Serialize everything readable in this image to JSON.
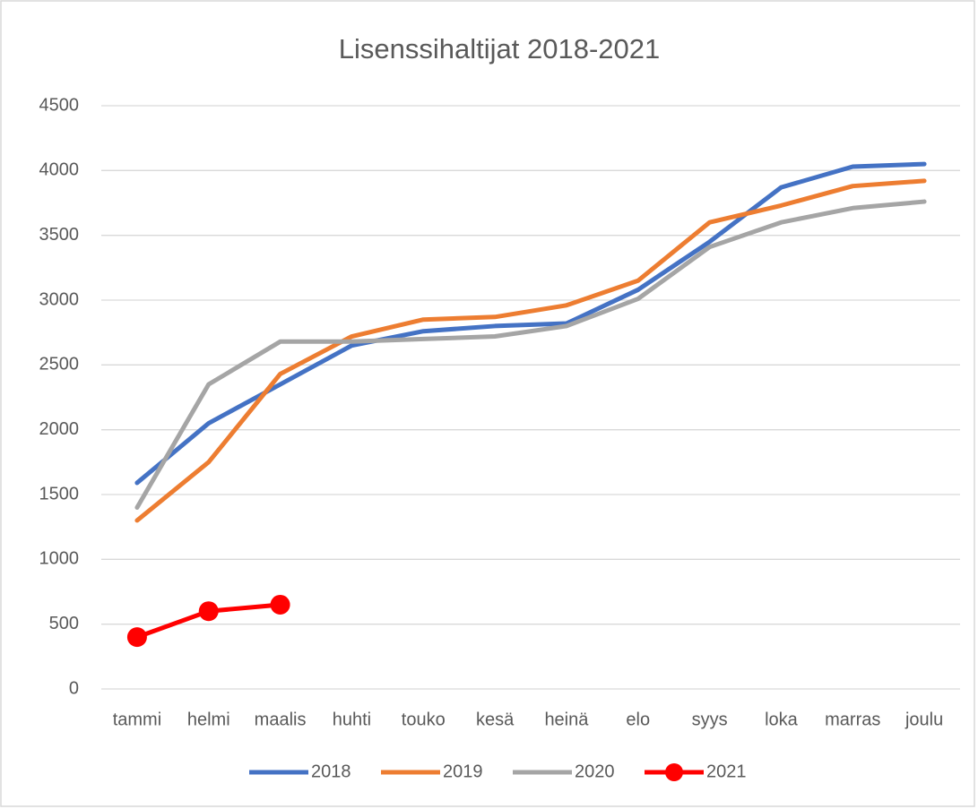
{
  "chart_data": {
    "type": "line",
    "title": "Lisenssihaltijat 2018-2021",
    "categories": [
      "tammi",
      "helmi",
      "maalis",
      "huhti",
      "touko",
      "kesä",
      "heinä",
      "elo",
      "syys",
      "loka",
      "marras",
      "joulu"
    ],
    "series": [
      {
        "name": "2018",
        "color": "#4472c4",
        "values": [
          1590,
          2050,
          2350,
          2650,
          2760,
          2800,
          2820,
          3080,
          3450,
          3870,
          4030,
          4050
        ]
      },
      {
        "name": "2019",
        "color": "#ed7d31",
        "values": [
          1300,
          1750,
          2430,
          2720,
          2850,
          2870,
          2960,
          3150,
          3600,
          3730,
          3880,
          3920
        ]
      },
      {
        "name": "2020",
        "color": "#a5a5a5",
        "values": [
          1400,
          2350,
          2680,
          2680,
          2700,
          2720,
          2800,
          3010,
          3410,
          3600,
          3710,
          3760
        ]
      },
      {
        "name": "2021",
        "color": "#ff0000",
        "markers": true,
        "values": [
          400,
          600,
          650,
          null,
          null,
          null,
          null,
          null,
          null,
          null,
          null,
          null
        ]
      }
    ],
    "ylim": [
      0,
      4500
    ],
    "yticks": [
      0,
      500,
      1000,
      1500,
      2000,
      2500,
      3000,
      3500,
      4000,
      4500
    ],
    "grid": true,
    "legend": "bottom"
  }
}
